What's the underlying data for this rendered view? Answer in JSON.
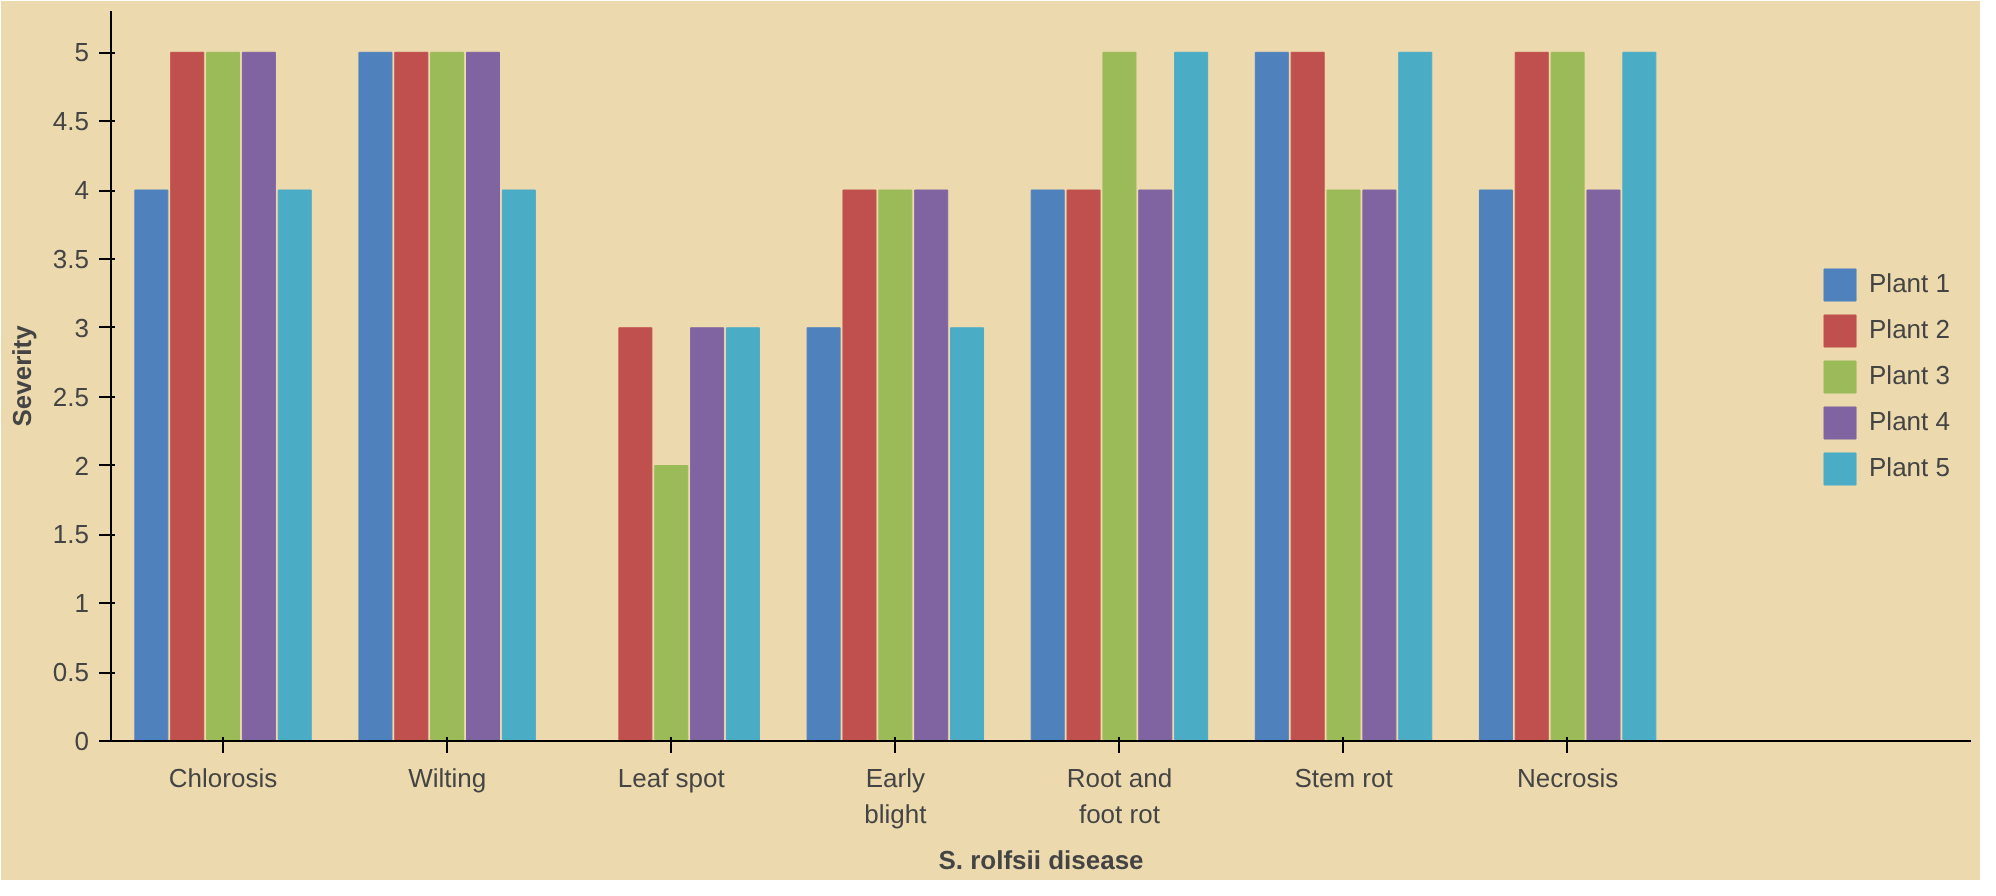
{
  "chart_data": {
    "type": "bar",
    "xlabel": "S. rolfsii disease",
    "ylabel": "Severity",
    "categories": [
      "Chlorosis",
      "Wilting",
      "Leaf spot",
      "Early blight",
      "Root and foot rot",
      "Stem rot",
      "Necrosis"
    ],
    "series": [
      {
        "name": "Plant 1",
        "color": "#4f81bd",
        "values": [
          4,
          5,
          0,
          3,
          4,
          5,
          4
        ]
      },
      {
        "name": "Plant 2",
        "color": "#c0504d",
        "values": [
          5,
          5,
          3,
          4,
          4,
          5,
          5
        ]
      },
      {
        "name": "Plant 3",
        "color": "#9bbb59",
        "values": [
          5,
          5,
          2,
          4,
          5,
          4,
          5
        ]
      },
      {
        "name": "Plant 4",
        "color": "#8064a2",
        "values": [
          5,
          5,
          3,
          4,
          4,
          4,
          4
        ]
      },
      {
        "name": "Plant 5",
        "color": "#4bacc6",
        "values": [
          4,
          4,
          3,
          3,
          5,
          5,
          5
        ]
      }
    ],
    "ylim": [
      0,
      5.3
    ],
    "yticks": [
      0,
      0.5,
      1,
      1.5,
      2,
      2.5,
      3,
      3.5,
      4,
      4.5,
      5
    ],
    "grid": false,
    "legend": "right"
  }
}
